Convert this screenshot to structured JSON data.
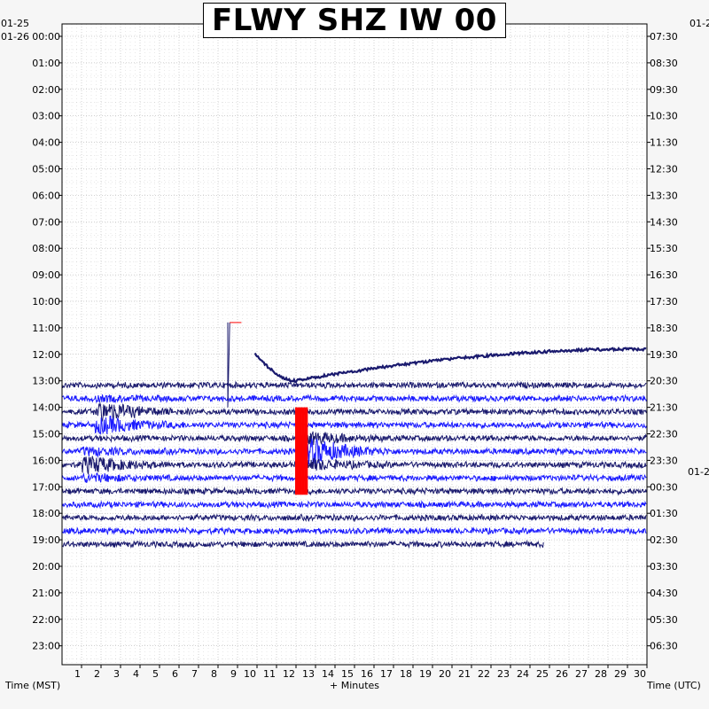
{
  "title": "FLWY SHZ IW 00",
  "left_date_top": "01-25",
  "left_date_second": "01-26",
  "right_date_top": "01-2",
  "right_date_mid": "01-2",
  "xlabel": "+ Minutes",
  "left_axis_label": "Time (MST)",
  "right_axis_label": "Time (UTC)",
  "colors": {
    "background": "#f6f6f6",
    "plot_bg": "#ffffff",
    "trace_dark": "#1a1a6e",
    "trace_blue": "#1a1aff",
    "clip_red": "#ff0000",
    "grid": "#999999"
  },
  "chart_data": {
    "type": "line",
    "title": "FLWY SHZ IW 00",
    "xlabel": "+ Minutes",
    "xlim": [
      0,
      30
    ],
    "x_ticks": [
      "1",
      "2",
      "3",
      "4",
      "5",
      "6",
      "7",
      "8",
      "9",
      "10",
      "11",
      "12",
      "13",
      "14",
      "15",
      "16",
      "17",
      "18",
      "19",
      "20",
      "21",
      "22",
      "23",
      "24",
      "25",
      "26",
      "27",
      "28",
      "29",
      "30"
    ],
    "left_ticks": [
      "00:00",
      "01:00",
      "02:00",
      "03:00",
      "04:00",
      "05:00",
      "06:00",
      "07:00",
      "08:00",
      "09:00",
      "10:00",
      "11:00",
      "12:00",
      "13:00",
      "14:00",
      "15:00",
      "16:00",
      "17:00",
      "18:00",
      "19:00",
      "20:00",
      "21:00",
      "22:00",
      "23:00"
    ],
    "right_ticks": [
      "07:30",
      "08:30",
      "09:30",
      "10:30",
      "11:30",
      "12:30",
      "13:30",
      "14:30",
      "15:30",
      "16:30",
      "17:30",
      "18:30",
      "19:30",
      "20:30",
      "21:30",
      "22:30",
      "23:30",
      "00:30",
      "01:30",
      "02:30",
      "03:30",
      "04:30",
      "05:30",
      "06:30"
    ],
    "grid": true,
    "trace_rows_start_hour": 13.0,
    "trace_rows_end_hour": 19.0,
    "trace_end_minute_last_row": 24.7,
    "clip_marker": {
      "start_minute": 12.0,
      "end_minute": 12.6,
      "from_hour": 14.0,
      "to_hour": 17.3
    },
    "drift_curve": {
      "start_minute": 9.9,
      "start_hour": 12.0,
      "min_minute": 12.0,
      "min_hour": 13.0,
      "end_minute": 30.0,
      "end_hour": 11.8
    },
    "spike_trace": {
      "minute": 8.6,
      "from_hour": 14.0,
      "to_hour": 10.8
    },
    "events": [
      {
        "minute": 2.5,
        "hour": 14.2,
        "amplitude": 0.8
      },
      {
        "minute": 13.0,
        "hour": 15.5,
        "amplitude": 0.9
      },
      {
        "minute": 1.8,
        "hour": 16.0,
        "amplitude": 0.5
      }
    ]
  }
}
